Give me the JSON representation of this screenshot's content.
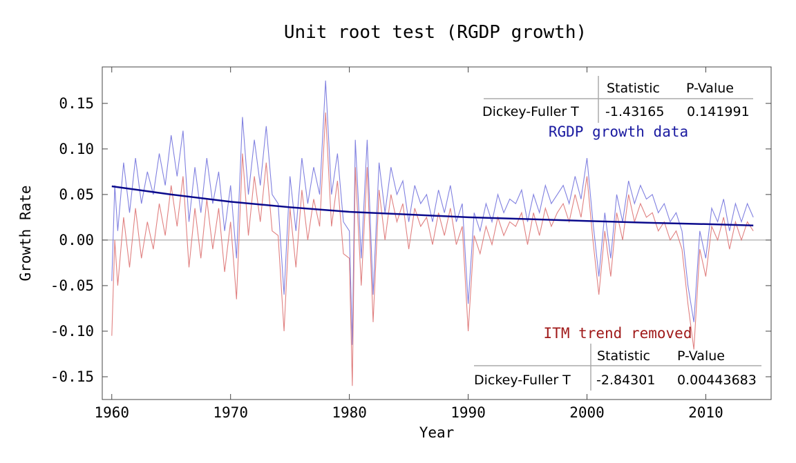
{
  "chart_data": {
    "type": "line",
    "title": "Unit root test (RGDP growth)",
    "xlabel": "Year",
    "ylabel": "Growth Rate",
    "xlim": [
      1959.2,
      2015.5
    ],
    "ylim": [
      -0.175,
      0.19
    ],
    "x_ticks": [
      "1960",
      "1970",
      "1980",
      "1990",
      "2000",
      "2010"
    ],
    "y_ticks": [
      "-0.15",
      "-0.10",
      "-0.05",
      "0.00",
      "0.05",
      "0.10",
      "0.15"
    ],
    "grid": false,
    "colors": {
      "rgdp": "#8080e0",
      "detrended": "#e08080",
      "trend": "#0a0a8c",
      "rgdp_label": "#1a1aa0",
      "itm_label": "#a01a1a"
    },
    "trend": {
      "x": [
        1960,
        1965,
        1970,
        1975,
        1980,
        1985,
        1990,
        1995,
        2000,
        2005,
        2010,
        2014
      ],
      "y": [
        0.059,
        0.05,
        0.042,
        0.036,
        0.031,
        0.028,
        0.025,
        0.023,
        0.021,
        0.019,
        0.0175,
        0.016
      ]
    },
    "series": [
      {
        "id": "rgdp",
        "x": [
          1960.0,
          1960.25,
          1960.5,
          1961.0,
          1961.5,
          1962.0,
          1962.5,
          1963.0,
          1963.5,
          1964.0,
          1964.5,
          1965.0,
          1965.5,
          1966.0,
          1966.5,
          1967.0,
          1967.5,
          1968.0,
          1968.5,
          1969.0,
          1969.5,
          1970.0,
          1970.5,
          1971.0,
          1971.5,
          1972.0,
          1972.5,
          1973.0,
          1973.5,
          1974.0,
          1974.5,
          1975.0,
          1975.5,
          1976.0,
          1976.5,
          1977.0,
          1977.5,
          1978.0,
          1978.5,
          1979.0,
          1979.5,
          1980.0,
          1980.25,
          1980.5,
          1981.0,
          1981.5,
          1982.0,
          1982.5,
          1983.0,
          1983.5,
          1984.0,
          1984.5,
          1985.0,
          1985.5,
          1986.0,
          1986.5,
          1987.0,
          1987.5,
          1988.0,
          1988.5,
          1989.0,
          1989.5,
          1990.0,
          1990.5,
          1991.0,
          1991.5,
          1992.0,
          1992.5,
          1993.0,
          1993.5,
          1994.0,
          1994.5,
          1995.0,
          1995.5,
          1996.0,
          1996.5,
          1997.0,
          1997.5,
          1998.0,
          1998.5,
          1999.0,
          1999.5,
          2000.0,
          2000.5,
          2001.0,
          2001.5,
          2002.0,
          2002.5,
          2003.0,
          2003.5,
          2004.0,
          2004.5,
          2005.0,
          2005.5,
          2006.0,
          2006.5,
          2007.0,
          2007.5,
          2008.0,
          2008.5,
          2009.0,
          2009.5,
          2010.0,
          2010.5,
          2011.0,
          2011.5,
          2012.0,
          2012.5,
          2013.0,
          2013.5,
          2014.0
        ],
        "y": [
          -0.045,
          0.06,
          0.01,
          0.085,
          0.03,
          0.09,
          0.04,
          0.075,
          0.05,
          0.095,
          0.06,
          0.115,
          0.07,
          0.12,
          0.02,
          0.08,
          0.03,
          0.09,
          0.04,
          0.075,
          0.01,
          0.06,
          -0.02,
          0.135,
          0.05,
          0.11,
          0.06,
          0.125,
          0.05,
          0.04,
          -0.06,
          0.07,
          0.01,
          0.09,
          0.04,
          0.08,
          0.05,
          0.175,
          0.05,
          0.095,
          0.02,
          0.01,
          -0.115,
          0.11,
          -0.02,
          0.11,
          -0.06,
          0.085,
          0.03,
          0.08,
          0.05,
          0.065,
          0.02,
          0.06,
          0.04,
          0.05,
          0.02,
          0.055,
          0.03,
          0.06,
          0.02,
          0.04,
          -0.07,
          0.03,
          0.01,
          0.04,
          0.02,
          0.05,
          0.03,
          0.045,
          0.04,
          0.055,
          0.02,
          0.05,
          0.03,
          0.06,
          0.04,
          0.05,
          0.06,
          0.04,
          0.07,
          0.045,
          0.09,
          0.02,
          -0.04,
          0.03,
          -0.02,
          0.05,
          0.02,
          0.065,
          0.04,
          0.06,
          0.045,
          0.05,
          0.03,
          0.04,
          0.02,
          0.03,
          0.01,
          -0.05,
          -0.09,
          0.01,
          -0.02,
          0.035,
          0.02,
          0.045,
          0.01,
          0.04,
          0.02,
          0.04,
          0.025
        ]
      },
      {
        "id": "detrended",
        "x": [
          1960.0,
          1960.25,
          1960.5,
          1961.0,
          1961.5,
          1962.0,
          1962.5,
          1963.0,
          1963.5,
          1964.0,
          1964.5,
          1965.0,
          1965.5,
          1966.0,
          1966.5,
          1967.0,
          1967.5,
          1968.0,
          1968.5,
          1969.0,
          1969.5,
          1970.0,
          1970.5,
          1971.0,
          1971.5,
          1972.0,
          1972.5,
          1973.0,
          1973.5,
          1974.0,
          1974.5,
          1975.0,
          1975.5,
          1976.0,
          1976.5,
          1977.0,
          1977.5,
          1978.0,
          1978.5,
          1979.0,
          1979.5,
          1980.0,
          1980.25,
          1980.5,
          1981.0,
          1981.5,
          1982.0,
          1982.5,
          1983.0,
          1983.5,
          1984.0,
          1984.5,
          1985.0,
          1985.5,
          1986.0,
          1986.5,
          1987.0,
          1987.5,
          1988.0,
          1988.5,
          1989.0,
          1989.5,
          1990.0,
          1990.5,
          1991.0,
          1991.5,
          1992.0,
          1992.5,
          1993.0,
          1993.5,
          1994.0,
          1994.5,
          1995.0,
          1995.5,
          1996.0,
          1996.5,
          1997.0,
          1997.5,
          1998.0,
          1998.5,
          1999.0,
          1999.5,
          2000.0,
          2000.5,
          2001.0,
          2001.5,
          2002.0,
          2002.5,
          2003.0,
          2003.5,
          2004.0,
          2004.5,
          2005.0,
          2005.5,
          2006.0,
          2006.5,
          2007.0,
          2007.5,
          2008.0,
          2008.5,
          2009.0,
          2009.5,
          2010.0,
          2010.5,
          2011.0,
          2011.5,
          2012.0,
          2012.5,
          2013.0,
          2013.5,
          2014.0
        ],
        "y": [
          -0.105,
          0.0,
          -0.05,
          0.025,
          -0.03,
          0.035,
          -0.02,
          0.02,
          -0.01,
          0.04,
          0.005,
          0.06,
          0.015,
          0.07,
          -0.03,
          0.035,
          -0.02,
          0.045,
          -0.01,
          0.035,
          -0.035,
          0.02,
          -0.065,
          0.095,
          0.005,
          0.07,
          0.02,
          0.085,
          0.01,
          0.005,
          -0.1,
          0.035,
          -0.03,
          0.055,
          0.0,
          0.045,
          0.015,
          0.14,
          0.015,
          0.065,
          -0.015,
          -0.02,
          -0.16,
          0.08,
          -0.05,
          0.08,
          -0.09,
          0.055,
          0.0,
          0.05,
          0.02,
          0.04,
          -0.01,
          0.035,
          0.015,
          0.025,
          -0.005,
          0.03,
          0.005,
          0.035,
          -0.005,
          0.015,
          -0.1,
          0.005,
          -0.015,
          0.015,
          -0.005,
          0.025,
          0.005,
          0.02,
          0.015,
          0.03,
          -0.005,
          0.03,
          0.005,
          0.035,
          0.015,
          0.03,
          0.04,
          0.02,
          0.05,
          0.025,
          0.07,
          0.0,
          -0.06,
          0.01,
          -0.04,
          0.03,
          0.0,
          0.05,
          0.02,
          0.04,
          0.025,
          0.03,
          0.01,
          0.02,
          0.0,
          0.01,
          -0.01,
          -0.07,
          -0.12,
          -0.01,
          -0.04,
          0.015,
          0.0,
          0.025,
          -0.01,
          0.02,
          0.0,
          0.02,
          0.01
        ]
      }
    ],
    "annotations": {
      "top": {
        "series_label": "RGDP growth data",
        "header": [
          "Statistic",
          "P-Value"
        ],
        "row_label": "Dickey-Fuller T",
        "statistic": "-1.43165",
        "p_value": "0.141991"
      },
      "bottom": {
        "series_label": "ITM trend removed",
        "header": [
          "Statistic",
          "P-Value"
        ],
        "row_label": "Dickey-Fuller T",
        "statistic": "-2.84301",
        "p_value": "0.00443683"
      }
    }
  }
}
